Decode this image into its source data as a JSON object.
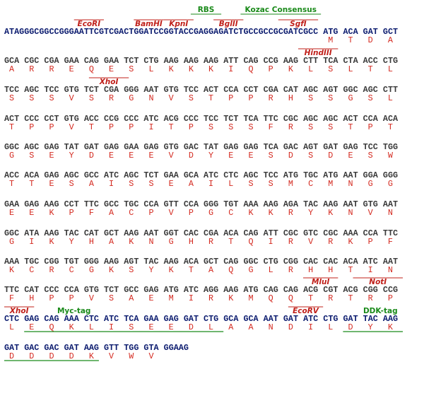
{
  "lines": [
    {
      "dna": "ATAGGGCGGCCGGGAATTCGTCGACTGGATCCGGTACCGAGGAGATCTGCCGCCGCGATCGCC ATG ACA GAT GCT",
      "protein": "MTDA",
      "color": "#0a1a6e",
      "annotations": [
        {
          "label": "EcoRI",
          "color": "#c0201a"
        },
        {
          "label": "BamHI",
          "color": "#c0201a"
        },
        {
          "label": "KpnI",
          "color": "#c0201a"
        },
        {
          "label": "BglII",
          "color": "#c0201a"
        },
        {
          "label": "SgfI",
          "color": "#c0201a"
        },
        {
          "label": "RBS",
          "color": "#1a8a1a"
        },
        {
          "label": "Kozac Consensus",
          "color": "#1a8a1a"
        }
      ]
    },
    {
      "dna": "GCA CGC CGA GAA CAG GAA TCT CTG AAG AAG AAG ATT CAG CCG AAG CTT TCA CTA ACC CTG",
      "protein": "ARREQESLKKKIQPKLSLTL",
      "color": "#3a3a3a",
      "annotations": [
        {
          "label": "HindIII",
          "color": "#c0201a"
        }
      ]
    },
    {
      "dna": "TCC AGC TCC GTG TCT CGA GGG AAT GTG TCC ACT CCA CCT CGA CAT AGC AGT GGC AGC CTT",
      "protein": "SSSVSRGNVSTPPRHSSGSL",
      "color": "#3a3a3a",
      "annotations": [
        {
          "label": "XhoI",
          "color": "#c0201a"
        }
      ]
    },
    {
      "dna": "ACT CCC CCT GTG ACC CCG CCC ATC ACG CCC TCC TCT TCA TTC CGC AGC AGC ACT CCA ACA",
      "protein": "TPPVTPPITPSSSFRSSTPT",
      "color": "#3a3a3a",
      "annotations": []
    },
    {
      "dna": "GGC AGC GAG TAT GAT GAG GAA GAG GTG GAC TAT GAG GAG TCA GAC AGT GAT GAG TCC TGG",
      "protein": "GSEYDEEEVDYEESDSDESW",
      "color": "#3a3a3a",
      "annotations": []
    },
    {
      "dna": "ACC ACA GAG AGC GCC ATC AGC TCT GAA GCA ATC CTC AGC TCC ATG TGC ATG AAT GGA GGG",
      "protein": "TTESAISSEAILSSMCMNGG",
      "color": "#3a3a3a",
      "annotations": []
    },
    {
      "dna": "GAA GAG AAG CCT TTC GCC TGC CCA GTT CCA GGG TGT AAA AAG AGA TAC AAG AAT GTG AAT",
      "protein": "EEKPFACPVPGCKKRYKNVN",
      "color": "#3a3a3a",
      "annotations": []
    },
    {
      "dna": "GGC ATA AAG TAC CAT GCT AAG AAT GGT CAC CGA ACA CAG ATT CGC GTC CGC AAA CCA TTC",
      "protein": "GIKYHAKNGHRTQIRVRKPF",
      "color": "#3a3a3a",
      "annotations": []
    },
    {
      "dna": "AAA TGC CGG TGT GGG AAG AGT TAC AAG ACA GCT CAG GGC CTG CGG CAC CAC ACA ATC AAT",
      "protein": "KCRCGKSYKTAQGLRHHTIN",
      "color": "#3a3a3a",
      "annotations": []
    },
    {
      "dna": "TTC CAT CCC CCA GTG TCT GCC GAG ATG ATC AGG AAG ATG CAG CAG ACG CGT ACG CGG CCG",
      "protein": "FHPPVSAEMIRKMQQTRTRP",
      "color": "#3a3a3a",
      "annotations": [
        {
          "label": "MluI",
          "color": "#c0201a"
        },
        {
          "label": "NotI",
          "color": "#c0201a"
        }
      ]
    },
    {
      "dna": "CTC GAG CAG AAA CTC ATC TCA GAA GAG GAT CTG GCA GCA AAT GAT ATC CTG GAT TAC AAG",
      "protein": "LEQKLISEEDLAANDILDYK",
      "color": "#0a1a6e",
      "annotations": [
        {
          "label": "XhoI",
          "color": "#c0201a"
        },
        {
          "label": "Myc-tag",
          "color": "#1a8a1a"
        },
        {
          "label": "EcoRV",
          "color": "#c0201a"
        },
        {
          "label": "DDK-tag",
          "color": "#1a8a1a"
        }
      ]
    },
    {
      "dna": "GAT GAC GAC GAT AAG GTT TGG GTA GGAAG",
      "protein": "DDDDKVWV",
      "color": "#0a1a6e",
      "annotations": []
    }
  ],
  "protein_color": "#d42a20"
}
